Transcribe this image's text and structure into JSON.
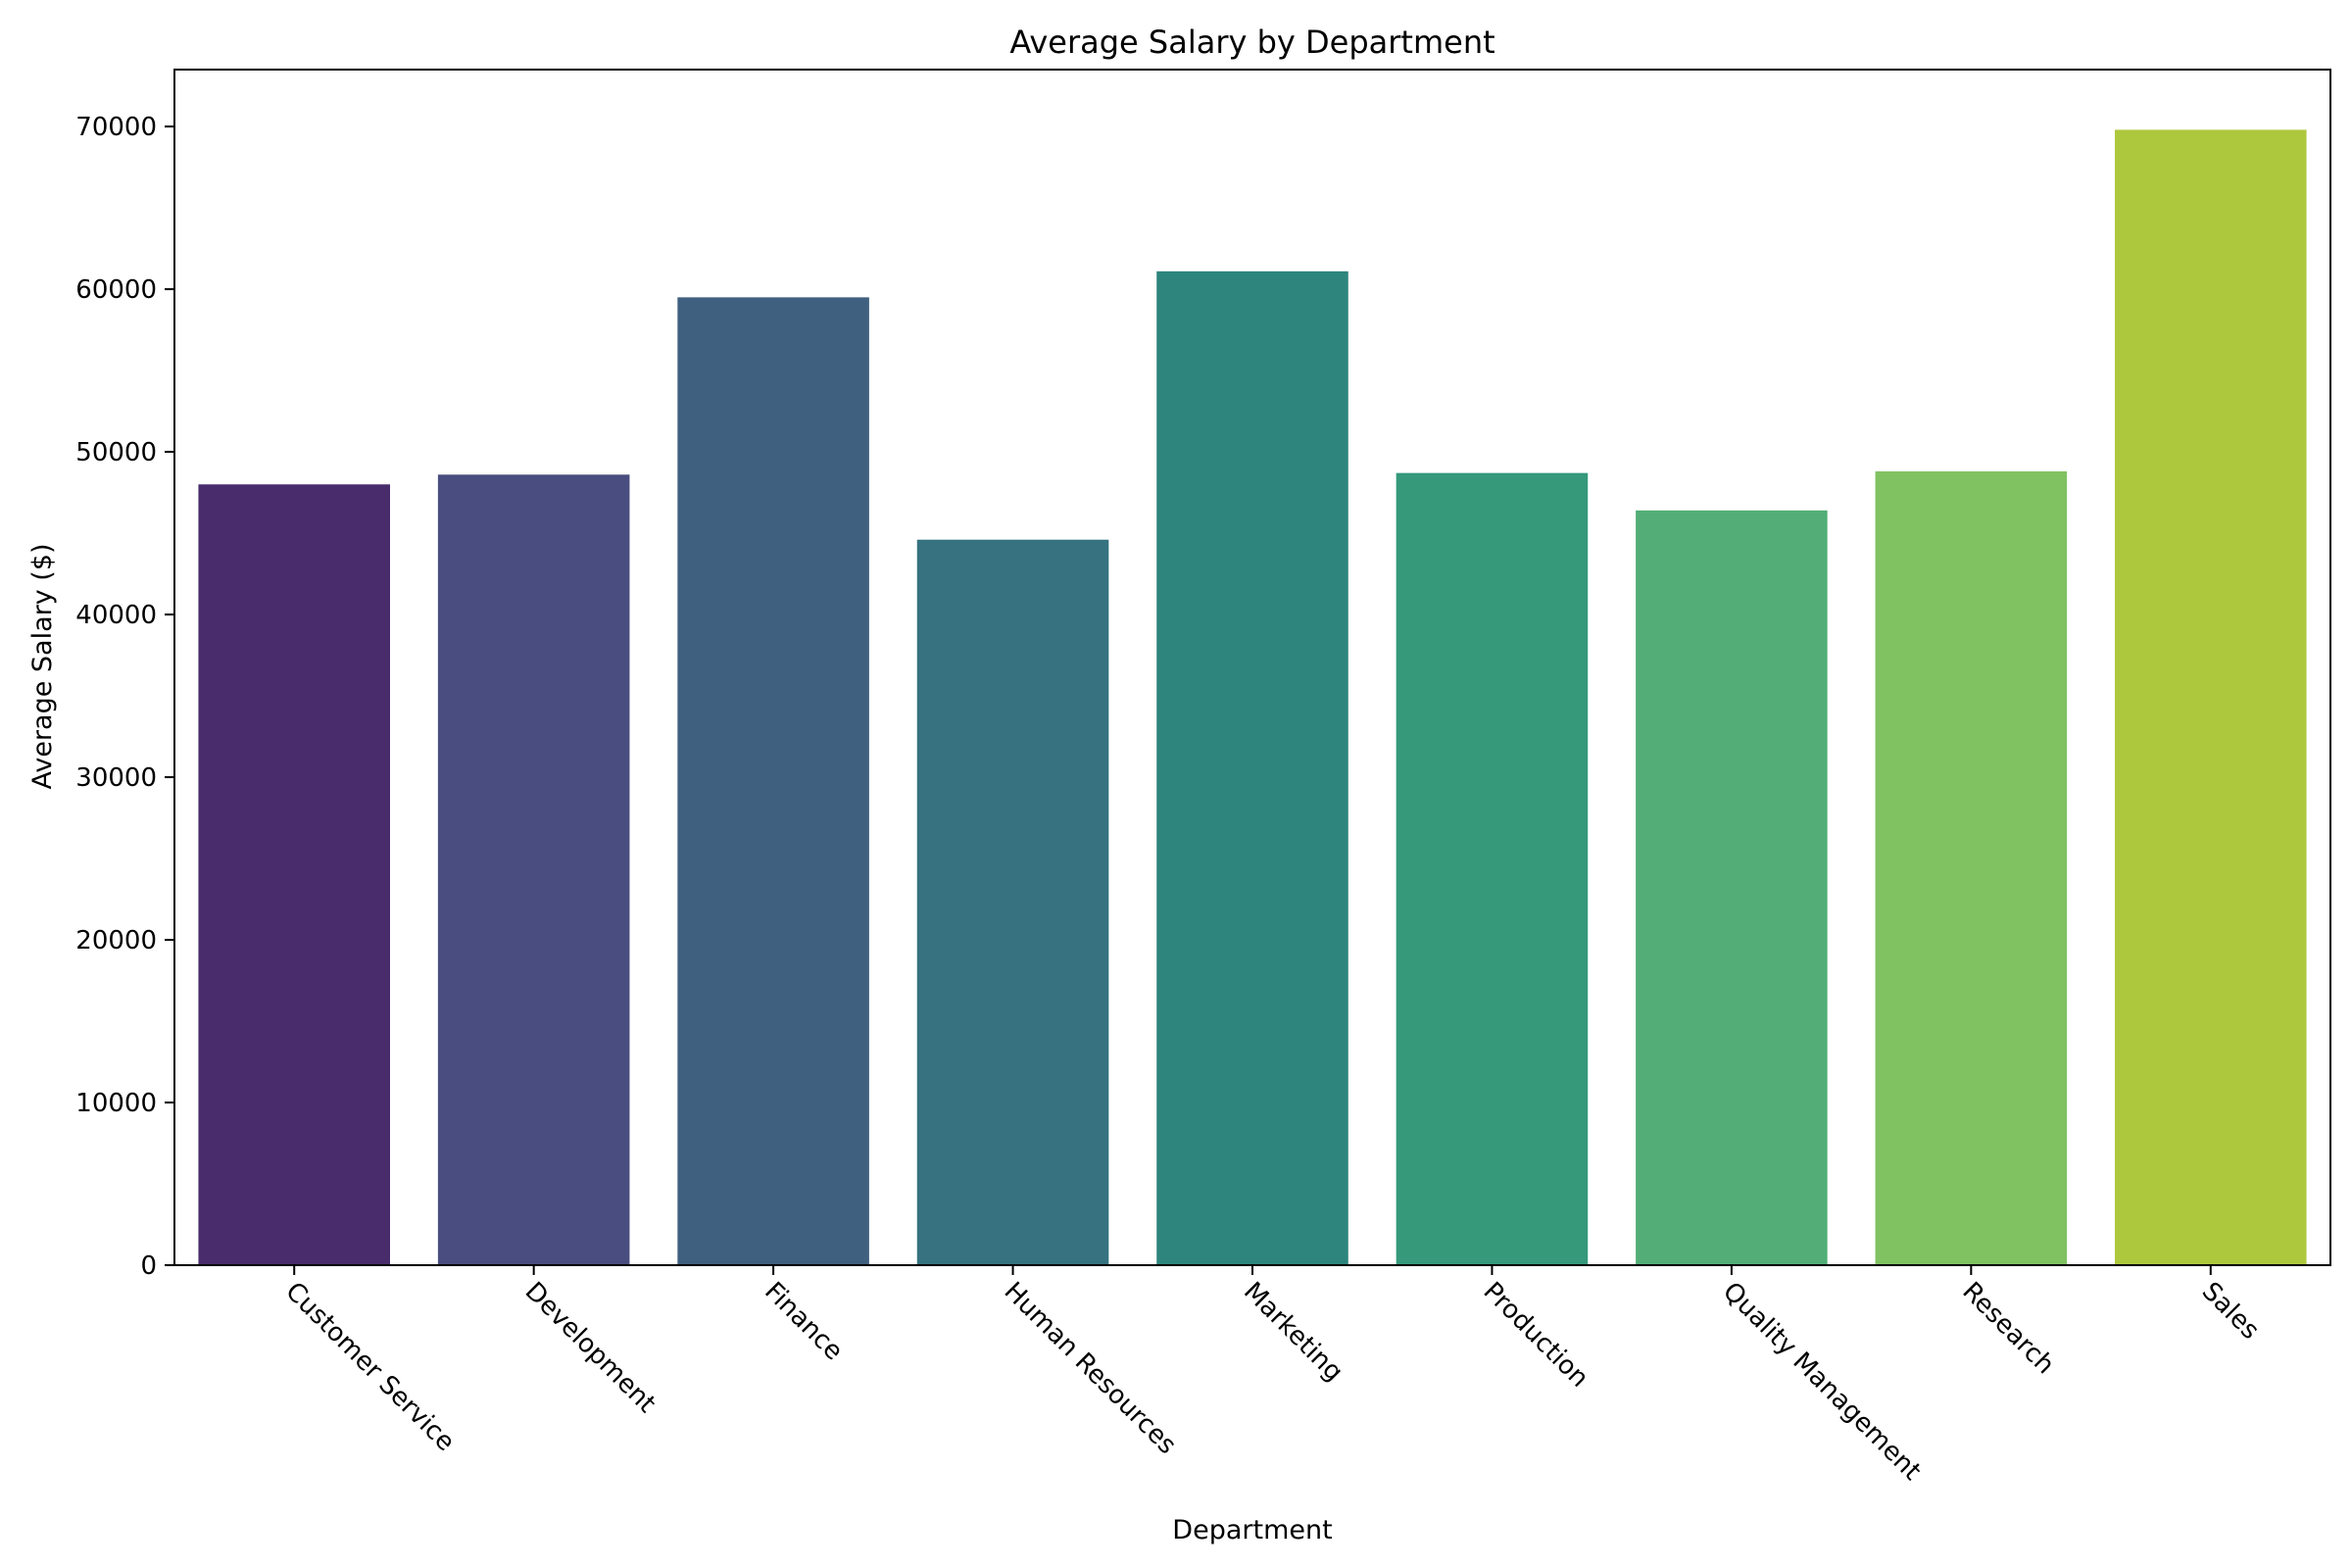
{
  "chart_data": {
    "type": "bar",
    "title": "Average Salary by Department",
    "xlabel": "Department",
    "ylabel": "Average Salary ($)",
    "categories": [
      "Customer Service",
      "Development",
      "Finance",
      "Human Resources",
      "Marketing",
      "Production",
      "Quality Management",
      "Research",
      "Sales"
    ],
    "values": [
      48000,
      48600,
      59500,
      44600,
      61100,
      48700,
      46400,
      48800,
      69800
    ],
    "colors": [
      "#482c6c",
      "#494d7f",
      "#406080",
      "#367280",
      "#2e857d",
      "#35997a",
      "#52ae76",
      "#80c262",
      "#aec83d"
    ],
    "ylim": [
      0,
      73500
    ],
    "yticks": [
      0,
      10000,
      20000,
      30000,
      40000,
      50000,
      60000,
      70000
    ],
    "grid": false,
    "legend": "none"
  }
}
